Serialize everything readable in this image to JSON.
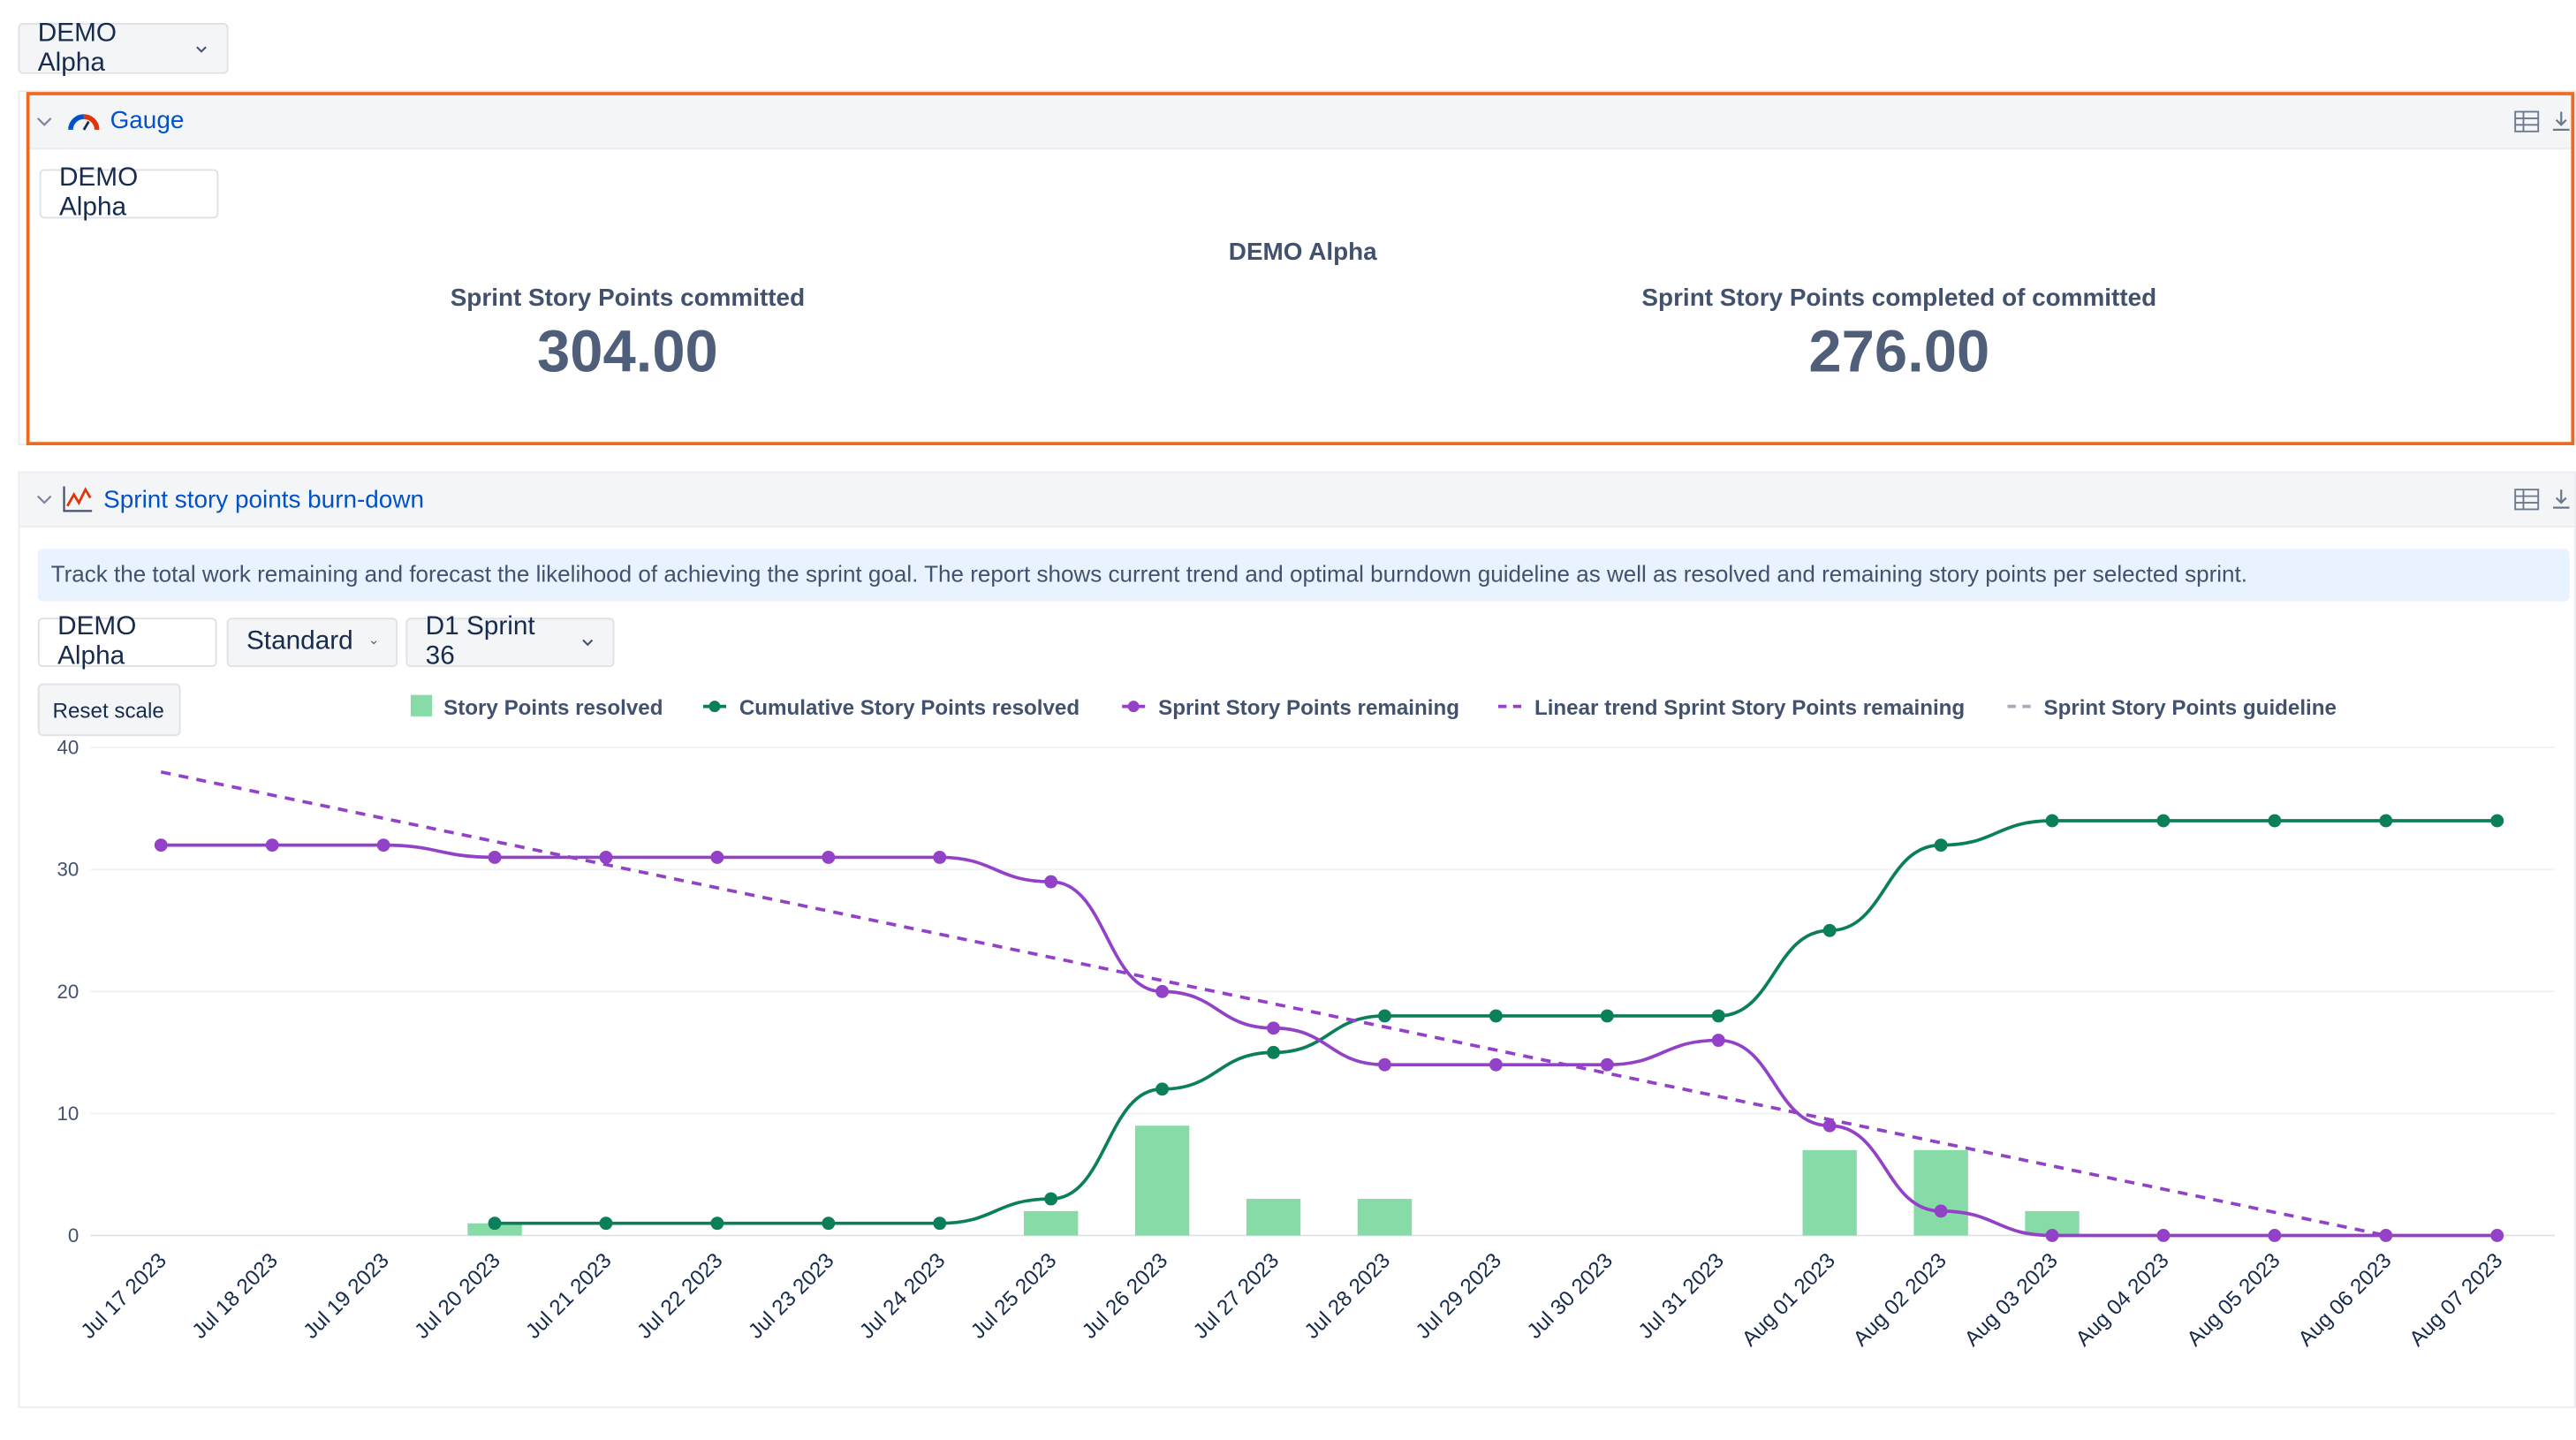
{
  "top_selector": "DEMO Alpha",
  "gauge": {
    "title": "Gauge",
    "selector": "DEMO Alpha",
    "subtitle": "DEMO Alpha",
    "metrics": [
      {
        "label": "Sprint Story Points committed",
        "value": "304.00"
      },
      {
        "label": "Sprint Story Points completed of committed",
        "value": "276.00"
      }
    ]
  },
  "burndown": {
    "title": "Sprint story points burn-down",
    "description": "Track the total work remaining and forecast the likelihood of achieving the sprint goal. The report shows current trend and optimal burndown guideline as well as resolved and remaining story points per selected sprint.",
    "selectors": [
      "DEMO Alpha",
      "Standard",
      "D1 Sprint 36"
    ],
    "reset_button": "Reset scale",
    "chart_data": {
      "type": "line",
      "categories": [
        "Jul 17 2023",
        "Jul 18 2023",
        "Jul 19 2023",
        "Jul 20 2023",
        "Jul 21 2023",
        "Jul 22 2023",
        "Jul 23 2023",
        "Jul 24 2023",
        "Jul 25 2023",
        "Jul 26 2023",
        "Jul 27 2023",
        "Jul 28 2023",
        "Jul 29 2023",
        "Jul 30 2023",
        "Jul 31 2023",
        "Aug 01 2023",
        "Aug 02 2023",
        "Aug 03 2023",
        "Aug 04 2023",
        "Aug 05 2023",
        "Aug 06 2023",
        "Aug 07 2023"
      ],
      "series": [
        {
          "name": "Story Points resolved",
          "type": "bar",
          "color": "#86dba6",
          "values": [
            0,
            0,
            0,
            1,
            0,
            0,
            0,
            0,
            2,
            9,
            3,
            3,
            0,
            0,
            0,
            7,
            7,
            2,
            0,
            0,
            0,
            0
          ]
        },
        {
          "name": "Cumulative Story Points resolved",
          "type": "line",
          "color": "#0b7f5a",
          "values": [
            null,
            null,
            null,
            1,
            1,
            1,
            1,
            1,
            3,
            12,
            15,
            18,
            18,
            18,
            18,
            25,
            32,
            34,
            34,
            34,
            34,
            34
          ]
        },
        {
          "name": "Sprint Story Points remaining",
          "type": "line",
          "color": "#9342c8",
          "values": [
            32,
            32,
            32,
            31,
            31,
            31,
            31,
            31,
            29,
            20,
            17,
            14,
            14,
            14,
            16,
            9,
            2,
            0,
            0,
            0,
            0,
            0
          ]
        },
        {
          "name": "Linear trend Sprint Story Points remaining",
          "type": "dashed",
          "color": "#9342c8",
          "values": [
            38,
            36.1,
            34.2,
            32.3,
            30.4,
            28.5,
            26.6,
            24.7,
            22.8,
            20.9,
            19,
            17.1,
            15.2,
            13.3,
            11.4,
            9.5,
            7.6,
            5.7,
            3.8,
            1.9,
            0,
            null
          ]
        },
        {
          "name": "Sprint Story Points guideline",
          "type": "dashed",
          "color": "#a5adba",
          "values": [
            null,
            null,
            null,
            null,
            null,
            null,
            null,
            null,
            null,
            null,
            null,
            null,
            null,
            null,
            null,
            null,
            null,
            null,
            null,
            null,
            null,
            null
          ]
        }
      ],
      "ylim": [
        0,
        40
      ],
      "yticks": [
        0,
        10,
        20,
        30,
        40
      ],
      "grid": true
    }
  }
}
